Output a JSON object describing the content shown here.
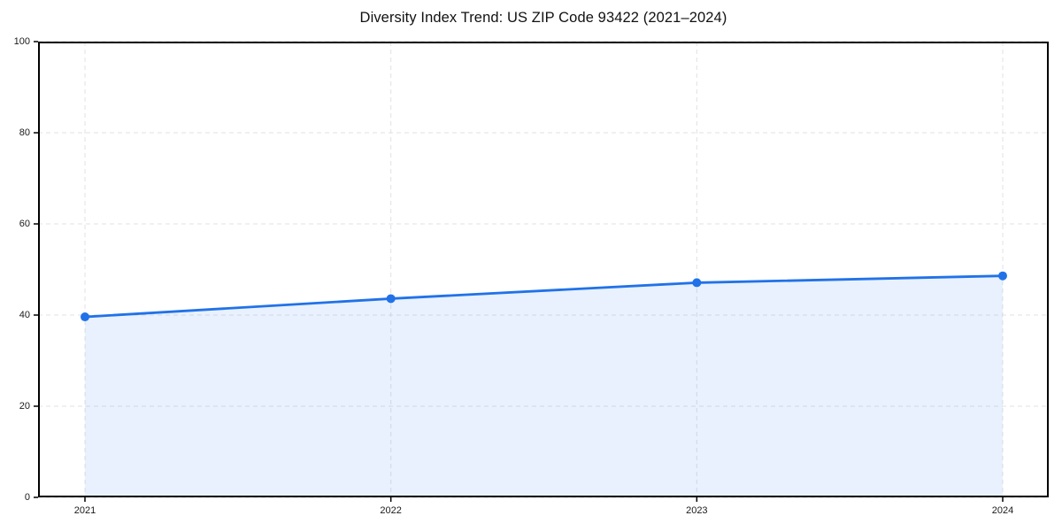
{
  "page": {
    "background": "#ffffff"
  },
  "chart_data": {
    "type": "area",
    "title": "Diversity Index Trend: US ZIP Code 93422 (2021–2024)",
    "categories": [
      "2021",
      "2022",
      "2023",
      "2024"
    ],
    "series": [
      {
        "name": "Diversity Index",
        "values": [
          39.6,
          43.6,
          47.1,
          48.6
        ]
      }
    ],
    "xlabel": "",
    "ylabel": "",
    "ylim": [
      0,
      100
    ],
    "yticks": [
      0,
      20,
      40,
      60,
      80,
      100
    ],
    "grid": "dashed",
    "legend_position": "none",
    "colors": {
      "line": "#2172e8",
      "marker": "#2172e8",
      "area_fill": "rgba(33, 114, 232, 0.10)",
      "grid": "#e2e2e2",
      "axis_border": "#000000",
      "tick_label": "#1a1a1a",
      "title": "#111111"
    }
  }
}
